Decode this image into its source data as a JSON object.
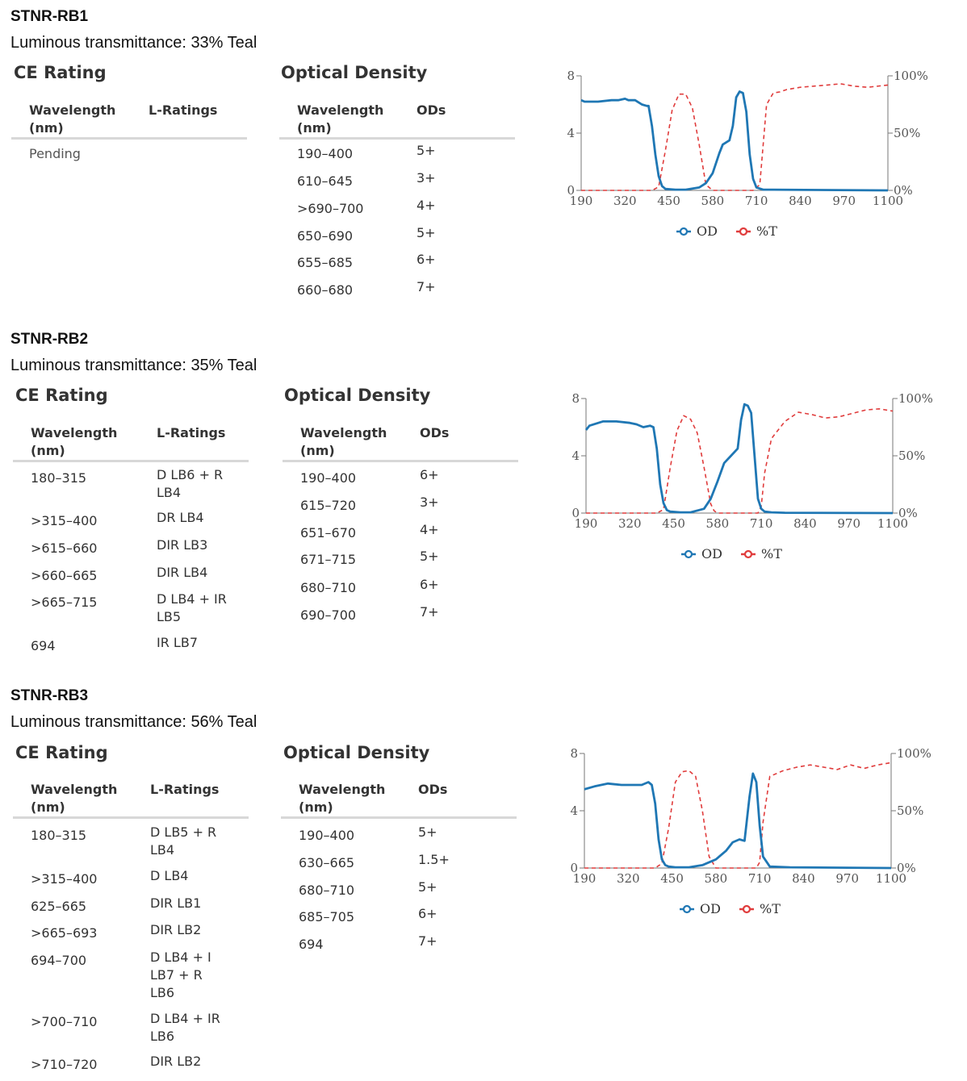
{
  "products": [
    {
      "title": "STNR-RB1",
      "luminous": "Luminous transmittance: 33% Teal",
      "ce_heading": "CE Rating",
      "od_heading": "Optical Density",
      "ce_headers": [
        "Wavelength (nm)",
        "L-Ratings"
      ],
      "od_headers": [
        "Wavelength (nm)",
        "ODs"
      ],
      "ce_rows": [
        [
          "Pending",
          ""
        ]
      ],
      "od_rows": [
        [
          "190–400",
          "5+"
        ],
        [
          "610–645",
          "3+"
        ],
        [
          ">690–700",
          "4+"
        ],
        [
          "650–690",
          "5+"
        ],
        [
          "655–685",
          "6+"
        ],
        [
          "660–680",
          "7+"
        ]
      ]
    },
    {
      "title": "STNR-RB2",
      "luminous": "Luminous transmittance: 35% Teal",
      "ce_heading": "CE Rating",
      "od_heading": "Optical Density",
      "ce_headers": [
        "Wavelength (nm)",
        "L-Ratings"
      ],
      "od_headers": [
        "Wavelength (nm)",
        "ODs"
      ],
      "ce_rows": [
        [
          "180–315",
          "D LB6 + R LB4"
        ],
        [
          ">315–400",
          "DR LB4"
        ],
        [
          ">615–660",
          "DIR LB3"
        ],
        [
          ">660–665",
          "DIR LB4"
        ],
        [
          ">665–715",
          "D LB4 + IR LB5"
        ],
        [
          "694",
          "IR LB7"
        ]
      ],
      "od_rows": [
        [
          "190–400",
          "6+"
        ],
        [
          "615–720",
          "3+"
        ],
        [
          "651–670",
          "4+"
        ],
        [
          "671–715",
          "5+"
        ],
        [
          "680–710",
          "6+"
        ],
        [
          "690–700",
          "7+"
        ]
      ]
    },
    {
      "title": "STNR-RB3",
      "luminous": "Luminous transmittance: 56% Teal",
      "ce_heading": "CE Rating",
      "od_heading": "Optical Density",
      "ce_headers": [
        "Wavelength (nm)",
        "L-Ratings"
      ],
      "od_headers": [
        "Wavelength (nm)",
        "ODs"
      ],
      "ce_rows": [
        [
          "180–315",
          "D LB5 + R LB4"
        ],
        [
          ">315–400",
          "D LB4"
        ],
        [
          "625–665",
          "DIR LB1"
        ],
        [
          ">665–693",
          "DIR LB2"
        ],
        [
          "694–700",
          "D LB4 + I LB7 + R LB6"
        ],
        [
          ">700–710",
          "D LB4 + IR LB6"
        ],
        [
          ">710–720",
          "DIR LB2"
        ]
      ],
      "od_rows": [
        [
          "190–400",
          "5+"
        ],
        [
          "630–665",
          "1.5+"
        ],
        [
          "680–710",
          "5+"
        ],
        [
          "685–705",
          "6+"
        ],
        [
          "694",
          "7+"
        ]
      ]
    }
  ],
  "chart_data": [
    {
      "type": "line",
      "x_ticks": [
        "190",
        "320",
        "450",
        "580",
        "710",
        "840",
        "970",
        "1100"
      ],
      "y_left_ticks": [
        "0",
        "4",
        "8"
      ],
      "y_right_ticks": [
        "0%",
        "50%",
        "100%"
      ],
      "xlim": [
        190,
        1100
      ],
      "ylim_left": [
        0,
        8
      ],
      "ylim_right": [
        0,
        100
      ],
      "legend": [
        "OD",
        "%T"
      ],
      "legend_position": "bottom",
      "colors": {
        "OD": "#1f77b4",
        "%T": "#e03c3c"
      },
      "series": [
        {
          "name": "OD",
          "x": [
            190,
            200,
            240,
            280,
            300,
            320,
            330,
            350,
            370,
            385,
            390,
            400,
            410,
            420,
            430,
            440,
            470,
            500,
            540,
            560,
            580,
            600,
            610,
            630,
            640,
            650,
            660,
            670,
            680,
            690,
            700,
            710,
            730,
            760,
            1100
          ],
          "y": [
            6.3,
            6.2,
            6.2,
            6.3,
            6.3,
            6.4,
            6.3,
            6.3,
            6.0,
            5.9,
            5.9,
            4.5,
            2.5,
            1.0,
            0.3,
            0.1,
            0.05,
            0.05,
            0.2,
            0.5,
            1.2,
            2.6,
            3.2,
            3.5,
            4.5,
            6.5,
            6.9,
            6.8,
            5.5,
            2.5,
            0.8,
            0.2,
            0.05,
            0.05,
            0.0
          ]
        },
        {
          "name": "%T",
          "x": [
            190,
            400,
            420,
            440,
            460,
            480,
            500,
            520,
            540,
            560,
            580,
            600,
            620,
            640,
            680,
            700,
            720,
            730,
            740,
            760,
            780,
            800,
            840,
            880,
            920,
            960,
            1000,
            1040,
            1100
          ],
          "y": [
            0,
            0,
            3,
            35,
            70,
            84,
            84,
            72,
            40,
            5,
            0,
            0,
            0,
            0,
            0,
            0,
            5,
            40,
            75,
            85,
            86,
            88,
            90,
            91,
            92,
            93,
            91,
            90,
            92
          ]
        }
      ]
    },
    {
      "type": "line",
      "x_ticks": [
        "190",
        "320",
        "450",
        "580",
        "710",
        "840",
        "970",
        "1100"
      ],
      "y_left_ticks": [
        "0",
        "4",
        "8"
      ],
      "y_right_ticks": [
        "0%",
        "50%",
        "100%"
      ],
      "xlim": [
        190,
        1100
      ],
      "ylim_left": [
        0,
        8
      ],
      "ylim_right": [
        0,
        100
      ],
      "legend": [
        "OD",
        "%T"
      ],
      "legend_position": "bottom",
      "colors": {
        "OD": "#1f77b4",
        "%T": "#e03c3c"
      },
      "series": [
        {
          "name": "OD",
          "x": [
            190,
            200,
            240,
            280,
            320,
            340,
            360,
            380,
            390,
            400,
            410,
            420,
            430,
            440,
            470,
            500,
            540,
            560,
            580,
            600,
            620,
            640,
            650,
            660,
            670,
            680,
            690,
            700,
            710,
            720,
            740,
            780,
            1100
          ],
          "y": [
            5.8,
            6.1,
            6.4,
            6.4,
            6.3,
            6.2,
            6.0,
            6.1,
            6.0,
            4.5,
            2.0,
            0.7,
            0.2,
            0.1,
            0.05,
            0.05,
            0.3,
            1.0,
            2.2,
            3.5,
            4.0,
            4.5,
            6.5,
            7.6,
            7.5,
            7.0,
            4.0,
            1.0,
            0.3,
            0.1,
            0.05,
            0.02,
            0.0
          ]
        },
        {
          "name": "%T",
          "x": [
            190,
            400,
            420,
            440,
            460,
            480,
            500,
            520,
            540,
            560,
            570,
            580,
            600,
            660,
            700,
            710,
            720,
            740,
            780,
            820,
            860,
            900,
            940,
            980,
            1020,
            1060,
            1100
          ],
          "y": [
            0,
            0,
            3,
            40,
            72,
            85,
            82,
            70,
            40,
            8,
            2,
            0,
            0,
            0,
            0,
            6,
            35,
            65,
            80,
            88,
            86,
            83,
            84,
            87,
            90,
            91,
            89
          ]
        }
      ]
    },
    {
      "type": "line",
      "x_ticks": [
        "190",
        "320",
        "450",
        "580",
        "710",
        "840",
        "970",
        "1100"
      ],
      "y_left_ticks": [
        "0",
        "4",
        "8"
      ],
      "y_right_ticks": [
        "0%",
        "50%",
        "100%"
      ],
      "xlim": [
        190,
        1100
      ],
      "ylim_left": [
        0,
        8
      ],
      "ylim_right": [
        0,
        100
      ],
      "legend": [
        "OD",
        "%T"
      ],
      "legend_position": "bottom",
      "colors": {
        "OD": "#1f77b4",
        "%T": "#e03c3c"
      },
      "series": [
        {
          "name": "OD",
          "x": [
            190,
            220,
            260,
            300,
            330,
            360,
            380,
            390,
            400,
            410,
            420,
            430,
            440,
            460,
            500,
            540,
            580,
            610,
            630,
            650,
            665,
            680,
            690,
            700,
            710,
            720,
            740,
            800,
            1100
          ],
          "y": [
            5.5,
            5.7,
            5.9,
            5.8,
            5.8,
            5.8,
            6.0,
            5.8,
            4.5,
            2.0,
            0.6,
            0.2,
            0.1,
            0.05,
            0.05,
            0.2,
            0.6,
            1.2,
            1.8,
            2.0,
            1.9,
            5.0,
            6.6,
            6.0,
            3.0,
            0.8,
            0.1,
            0.05,
            0.0
          ]
        },
        {
          "name": "%T",
          "x": [
            190,
            400,
            420,
            440,
            460,
            480,
            500,
            520,
            540,
            560,
            580,
            600,
            700,
            710,
            720,
            740,
            780,
            820,
            860,
            900,
            940,
            980,
            1020,
            1060,
            1100
          ],
          "y": [
            0,
            0,
            4,
            35,
            75,
            84,
            85,
            80,
            50,
            10,
            0,
            0,
            0,
            5,
            40,
            80,
            85,
            88,
            90,
            88,
            86,
            90,
            87,
            90,
            92
          ]
        }
      ]
    }
  ]
}
